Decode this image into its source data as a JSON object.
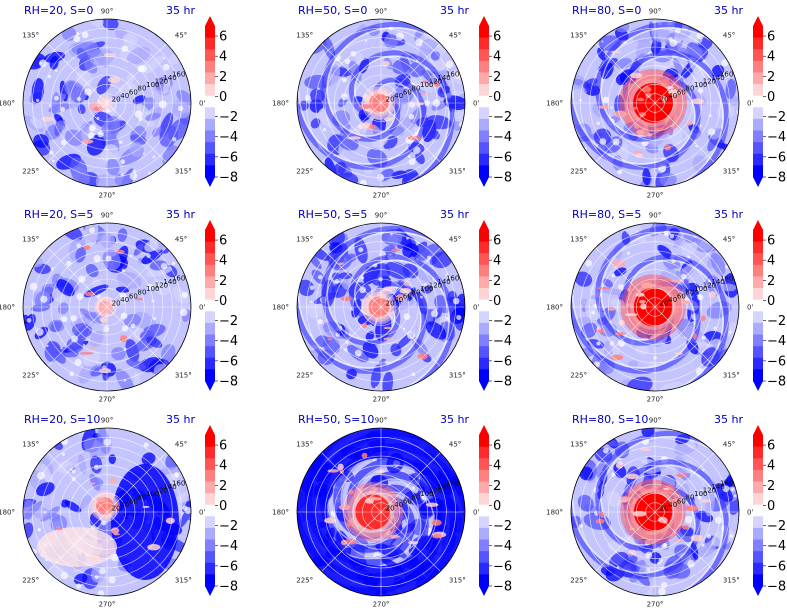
{
  "chart_data": {
    "type": "heatmap",
    "projection": "polar",
    "grid": true,
    "panels": [
      {
        "title": "RH=20, S=0",
        "time": "35 hr",
        "pattern": "weak",
        "core": 0.05,
        "neg": 0.4
      },
      {
        "title": "RH=50, S=0",
        "time": "35 hr",
        "pattern": "spiral",
        "core": 0.35,
        "neg": 0.55
      },
      {
        "title": "RH=80, S=0",
        "time": "35 hr",
        "pattern": "strong",
        "core": 1.0,
        "neg": 0.5
      },
      {
        "title": "RH=20, S=5",
        "time": "35 hr",
        "pattern": "weak",
        "core": 0.15,
        "neg": 0.55
      },
      {
        "title": "RH=50, S=5",
        "time": "35 hr",
        "pattern": "spiral",
        "core": 0.4,
        "neg": 0.75
      },
      {
        "title": "RH=80, S=5",
        "time": "35 hr",
        "pattern": "strong",
        "core": 0.95,
        "neg": 0.35
      },
      {
        "title": "RH=20, S=10",
        "time": "35 hr",
        "pattern": "band",
        "core": 0.3,
        "neg": 0.45
      },
      {
        "title": "RH=50, S=10",
        "time": "35 hr",
        "pattern": "rings",
        "core": 0.85,
        "neg": 0.95
      },
      {
        "title": "RH=80, S=10",
        "time": "35 hr",
        "pattern": "strong",
        "core": 0.95,
        "neg": 0.55
      }
    ],
    "angle_ticks": [
      "0°",
      "45°",
      "90°",
      "135°",
      "180°",
      "225°",
      "270°",
      "315°"
    ],
    "radial_ticks": [
      "20",
      "40",
      "60",
      "80",
      "100",
      "120",
      "140",
      "160"
    ],
    "radial_range": [
      0,
      180
    ],
    "colorbar": {
      "ticks": [
        "6",
        "4",
        "2",
        "0",
        "−2",
        "−4",
        "−6",
        "−8"
      ],
      "range": [
        -8,
        7
      ],
      "extend": "both",
      "colors": [
        "#0000ff",
        "#2a2aff",
        "#5555ff",
        "#7f7fff",
        "#aaaaff",
        "#d4d4ff",
        "#ffffff",
        "#ffd4d4",
        "#ffaaaa",
        "#ff7f7f",
        "#ff5555",
        "#ff2a2a",
        "#ff0000"
      ]
    }
  }
}
